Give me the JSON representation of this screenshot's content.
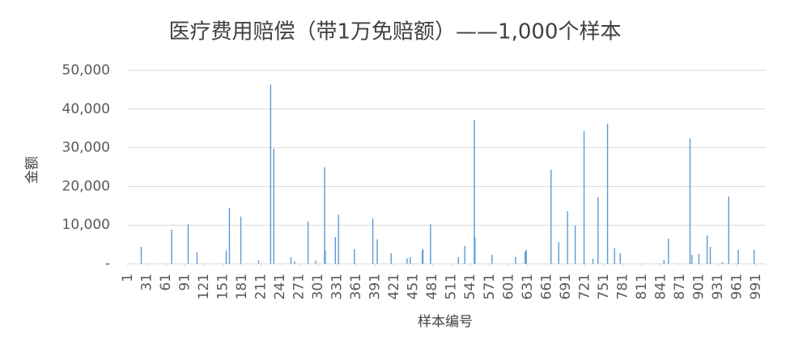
{
  "chart_data": {
    "type": "bar",
    "title": "医疗费用赔偿（带1万免赔额）——1,000个样本",
    "x_label": "样本编号",
    "y_label": "金额",
    "color": "#5b9bd5",
    "grid": true,
    "x": [
      22,
      70,
      96,
      110,
      156,
      161,
      179,
      207,
      226,
      231,
      258,
      264,
      285,
      297,
      311,
      312,
      328,
      333,
      358,
      387,
      394,
      416,
      441,
      446,
      465,
      466,
      478,
      522,
      532,
      547,
      548,
      575,
      612,
      627,
      629,
      668,
      680,
      694,
      706,
      720,
      734,
      742,
      757,
      768,
      777,
      846,
      853,
      887,
      890,
      901,
      914,
      919,
      938,
      948,
      963,
      988
    ],
    "values": [
      4400,
      8800,
      10200,
      3000,
      3400,
      14400,
      12200,
      900,
      46300,
      29700,
      1700,
      600,
      11000,
      800,
      25000,
      3400,
      6900,
      12700,
      3800,
      11700,
      6300,
      2700,
      1400,
      1700,
      3400,
      3800,
      10200,
      1700,
      4600,
      37200,
      6900,
      2300,
      1700,
      3100,
      3600,
      24300,
      5600,
      13600,
      9800,
      34300,
      1300,
      17200,
      36200,
      4000,
      2700,
      1000,
      6500,
      32400,
      2300,
      2500,
      7300,
      4400,
      400,
      17400,
      3600,
      3600
    ],
    "xlim": [
      1,
      1000
    ],
    "xticks": [
      1,
      31,
      61,
      91,
      121,
      151,
      181,
      211,
      241,
      271,
      301,
      331,
      361,
      391,
      421,
      451,
      481,
      511,
      541,
      571,
      601,
      631,
      661,
      691,
      721,
      751,
      781,
      811,
      841,
      871,
      901,
      931,
      961,
      991
    ],
    "ylim": [
      0,
      50000
    ],
    "yticks": [
      {
        "value": 0,
        "label": "-"
      },
      {
        "value": 10000,
        "label": "10,000"
      },
      {
        "value": 20000,
        "label": "20,000"
      },
      {
        "value": 30000,
        "label": "30,000"
      },
      {
        "value": 40000,
        "label": "40,000"
      },
      {
        "value": 50000,
        "label": "50,000"
      }
    ]
  }
}
